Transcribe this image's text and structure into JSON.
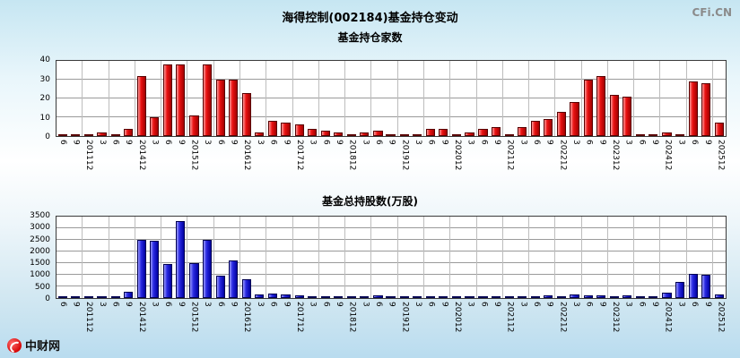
{
  "page": {
    "title": "海得控制(002184)基金持仓变动",
    "watermark": "CFi.CN",
    "logo_text": "中财网"
  },
  "chart_data": [
    {
      "type": "bar",
      "title": "基金持仓家数",
      "bar_color": "#ea1212",
      "ylim": [
        0,
        40
      ],
      "yticks": [
        0,
        10,
        20,
        30,
        40
      ],
      "grid": true,
      "categories": [
        "6",
        "9",
        "201112",
        "3",
        "6",
        "9",
        "201412",
        "3",
        "6",
        "9",
        "201512",
        "3",
        "6",
        "9",
        "201612",
        "3",
        "6",
        "9",
        "201712",
        "3",
        "6",
        "9",
        "201812",
        "3",
        "6",
        "9",
        "201912",
        "3",
        "6",
        "9",
        "202012",
        "3",
        "6",
        "9",
        "202112",
        "3",
        "6",
        "9",
        "202212",
        "3",
        "6",
        "9",
        "202312",
        "3",
        "6",
        "9",
        "202412",
        "3",
        "6",
        "9",
        "202512"
      ],
      "values": [
        1,
        1,
        1,
        2,
        1,
        4,
        32,
        10,
        38,
        38,
        11,
        38,
        30,
        30,
        23,
        2,
        8,
        7,
        6,
        4,
        3,
        2,
        1,
        2,
        3,
        1,
        1,
        1,
        4,
        4,
        1,
        2,
        4,
        5,
        1,
        5,
        8,
        9,
        13,
        18,
        30,
        32,
        22,
        21,
        1,
        1,
        2,
        1,
        29,
        28,
        7
      ]
    },
    {
      "type": "bar",
      "title": "基金总持股数(万股)",
      "bar_color": "#2a2ae2",
      "ylim": [
        0,
        3500
      ],
      "yticks": [
        0,
        500,
        1000,
        1500,
        2000,
        2500,
        3000,
        3500
      ],
      "grid": true,
      "categories": [
        "6",
        "9",
        "201112",
        "3",
        "6",
        "9",
        "201412",
        "3",
        "6",
        "9",
        "201512",
        "3",
        "6",
        "9",
        "201612",
        "3",
        "6",
        "9",
        "201712",
        "3",
        "6",
        "9",
        "201812",
        "3",
        "6",
        "9",
        "201912",
        "3",
        "6",
        "9",
        "202012",
        "3",
        "6",
        "9",
        "202112",
        "3",
        "6",
        "9",
        "202212",
        "3",
        "6",
        "9",
        "202312",
        "3",
        "6",
        "9",
        "202412",
        "3",
        "6",
        "9",
        "202512"
      ],
      "values": [
        20,
        15,
        20,
        50,
        30,
        280,
        2500,
        2450,
        1450,
        3300,
        1500,
        2500,
        950,
        1600,
        800,
        150,
        200,
        150,
        120,
        80,
        60,
        40,
        30,
        50,
        120,
        30,
        25,
        60,
        70,
        25,
        20,
        30,
        40,
        25,
        60,
        60,
        80,
        100,
        90,
        150,
        120,
        100,
        80,
        120,
        30,
        40,
        250,
        700,
        1050,
        1000,
        150
      ]
    }
  ]
}
